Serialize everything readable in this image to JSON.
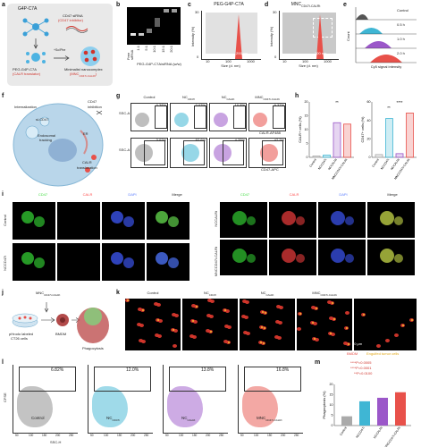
{
  "panel_a": {
    "label": "a",
    "g4p": "G4P-C7A",
    "sirna1": "CD47 siRNA",
    "sirna2": "(CD47 inhibitor)",
    "sirna_ex": "+Sc/Phe",
    "left1": "PEG-G4P-C7A",
    "left2": "(CALR translator)",
    "right1": "Minimalist nanocomplex",
    "right2": "(MNC",
    "right2_sub": "CD47i-CALRt",
    "right2_end": ")"
  },
  "panel_b": {
    "label": "b",
    "lanes": [
      "Free siRNA",
      "1:1",
      "5:1",
      "10:1",
      "15:1",
      "20:1"
    ],
    "xlabel": "PEG-G4P-C7A/siRNA (w/w)"
  },
  "panel_c": {
    "label": "c",
    "title": "PEG-G4P-C7A",
    "ylabel": "Intensity (%)",
    "xlabel": "Size (d. nm)",
    "scale": "200 nm",
    "yticks": [
      "0",
      "30"
    ],
    "xticks": [
      "10",
      "100",
      "1000"
    ]
  },
  "panel_d": {
    "label": "d",
    "title": "MNC",
    "title_sub": "CD47i-CALRt",
    "ylabel": "Intensity (%)",
    "xlabel": "Size (d. nm)",
    "scale": "200 nm",
    "yticks": [
      "0",
      "30"
    ],
    "xticks": [
      "10",
      "100",
      "1000"
    ]
  },
  "panel_e": {
    "label": "e",
    "series": [
      "Control",
      "0.5 h",
      "1.0 h",
      "2.0 h"
    ],
    "colors": [
      "#555555",
      "#3fb6d4",
      "#9b57c9",
      "#e8514a"
    ],
    "ylabel": "Count",
    "xlabel": "Cy5 signal intensity"
  },
  "panel_f": {
    "label": "f",
    "texts": {
      "internalization": "Internalization",
      "sicd47": "si-CD47",
      "cd47": "CD47",
      "inhibition": "inhibition",
      "endosomal": "Endosomal",
      "tracking": "tracking",
      "er": "ER",
      "calr": "CALR",
      "translocation": "translocation"
    }
  },
  "panel_g": {
    "label": "g",
    "cols": [
      "Control",
      "NC",
      "NC",
      "MNC"
    ],
    "cols_sub": [
      "",
      "CD47i",
      "CALRt",
      "CD47i-CALRt"
    ],
    "row1_pct": [
      "0.38%",
      "0.63%",
      "10.8%",
      "9.37%"
    ],
    "row2_pct": [
      "3.02%",
      "52.6%",
      "4.25%",
      "47.2%"
    ],
    "row1_y": "SSC-A",
    "row2_y": "SSC-A",
    "row1_x": "CALR-AF488",
    "row2_x": "CD47-APC",
    "colors": [
      "#888888",
      "#3fb6d4",
      "#9b57c9",
      "#e8514a"
    ]
  },
  "panel_h": {
    "label": "h",
    "charts": [
      {
        "ylabel": "CALR+ cells (%)",
        "yticks": [
          "0",
          "5",
          "10",
          "15",
          "20"
        ],
        "categories": [
          "Control",
          "NCCD47i",
          "NCCALRt",
          "MNCCD47i-CALRt"
        ],
        "values": [
          0.5,
          0.8,
          12.5,
          12.0
        ],
        "sig": "**"
      },
      {
        "ylabel": "CD47+ cells (%)",
        "yticks": [
          "0",
          "20",
          "40",
          "60"
        ],
        "categories": [
          "Control",
          "NCCD47i",
          "NCCALRt",
          "MNCCD47i-CALRt"
        ],
        "values": [
          3,
          42,
          4,
          48
        ],
        "sig": "****",
        "sig2": "**"
      }
    ]
  },
  "chart_data": [
    {
      "type": "bar",
      "categories": [
        "Control",
        "NCCD47i",
        "NCCALRt",
        "MNCCD47i-CALRt"
      ],
      "values": [
        0.5,
        0.8,
        12.5,
        12.0
      ],
      "ylabel": "CALR+ cells (%)",
      "ylim": [
        0,
        20
      ]
    },
    {
      "type": "bar",
      "categories": [
        "Control",
        "NCCD47i",
        "NCCALRt",
        "MNCCD47i-CALRt"
      ],
      "values": [
        3,
        42,
        4,
        48
      ],
      "ylabel": "CD47+ cells (%)",
      "ylim": [
        0,
        60
      ]
    },
    {
      "type": "bar",
      "categories": [
        "Control",
        "NCCD47i",
        "NCCALRt",
        "MNCCD47i-CALRt"
      ],
      "values": [
        4.5,
        11.8,
        13.5,
        16.2
      ],
      "ylabel": "Phagocytosis (%)",
      "ylim": [
        0,
        20
      ]
    }
  ],
  "panel_i": {
    "label": "i",
    "channels": [
      "CD47",
      "CALR",
      "DAPI",
      "Merge"
    ],
    "channel_colors": [
      "#3fdc3f",
      "#ff4a4a",
      "#5a7dff",
      "#ffffff"
    ],
    "rows_left": [
      "Control",
      "NCCD47i"
    ],
    "rows_right": [
      "NCCALRt",
      "MNCCD47i-CALRt"
    ],
    "scale": "10 μm"
  },
  "panel_j": {
    "label": "j",
    "top1": "MNC",
    "top1_sub": "CD47i-CALRt",
    "bottom1": "pHrodo labeled",
    "bottom2": "CT26 cells",
    "bmdm": "BMDM",
    "phago": "Phagocytosis"
  },
  "panel_k": {
    "label": "k",
    "cols": [
      "Control",
      "NC",
      "NC",
      "MNC"
    ],
    "cols_sub": [
      "",
      "CD47i",
      "CALRt",
      "CD47i-CALRt"
    ],
    "scale": "50 μm",
    "legend_bmdm": "BMDM",
    "legend_tumor": "Engulfed tumor cells"
  },
  "panel_l": {
    "label": "l",
    "ylabel": "CFSE",
    "xlabel": "SSC-H",
    "pct": [
      "6.82%",
      "12.0%",
      "13.8%",
      "16.8%"
    ],
    "names": [
      "Control",
      "NC",
      "NC",
      "MNC"
    ],
    "names_sub": [
      "",
      "CD47i",
      "CALRt",
      "CD47i-CALRt"
    ],
    "colors": [
      "#888888",
      "#3fb6d4",
      "#9b57c9",
      "#e8514a"
    ],
    "ticks": [
      "50",
      "100",
      "150",
      "200",
      "250"
    ]
  },
  "panel_m": {
    "label": "m",
    "ylabel": "Phagocytosis (%)",
    "yticks": [
      "0",
      "5",
      "10",
      "15",
      "20"
    ],
    "p1": "****P=0.0005",
    "p2": "****P=0.0001",
    "p3": "**P=0.0100",
    "categories": [
      "Control",
      "NCCD47i",
      "NCCALRt",
      "MNCCD47i-CALRt"
    ]
  }
}
